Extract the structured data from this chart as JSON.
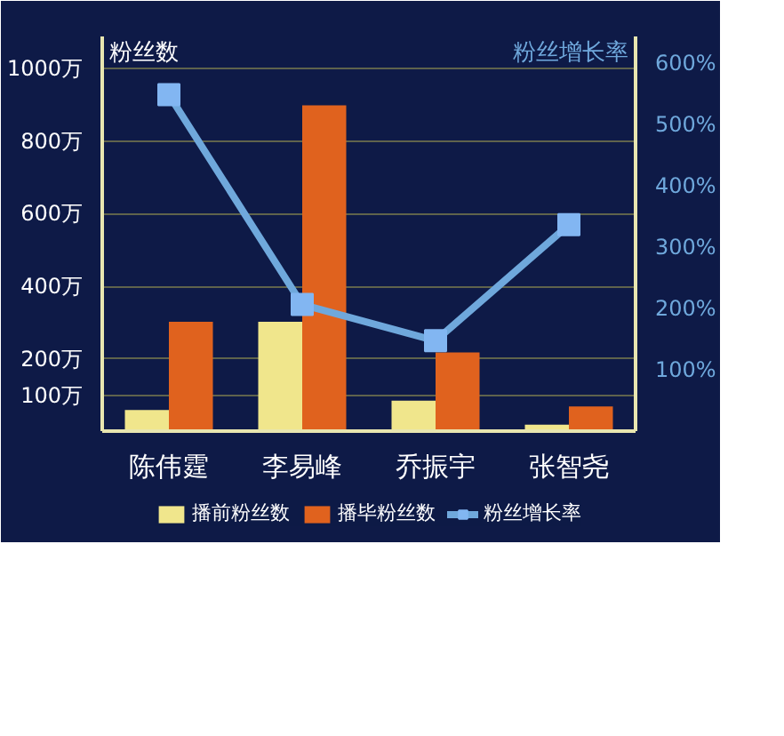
{
  "chart_data": {
    "type": "bar",
    "ylabel": "粉丝数",
    "y2label": "粉丝增长率",
    "categories": [
      "陈伟霆",
      "李易峰",
      "乔振宇",
      "张智尧"
    ],
    "series": [
      {
        "name": "播前粉丝数",
        "color": "#f0e68c",
        "values": [
          59,
          302,
          85,
          19
        ]
      },
      {
        "name": "播毕粉丝数",
        "color": "#e0621e",
        "values": [
          302,
          898,
          218,
          69
        ]
      },
      {
        "name": "粉丝增长率",
        "type": "line",
        "axis": "y2",
        "color": "#6fa8dc",
        "marker": "square",
        "values": [
          549,
          207,
          148,
          337
        ]
      }
    ],
    "ylim": [
      0,
      1088
    ],
    "yticks": [
      {
        "value": 100,
        "label": "100万"
      },
      {
        "value": 200,
        "label": "200万"
      },
      {
        "value": 400,
        "label": "400万"
      },
      {
        "value": 600,
        "label": "600万"
      },
      {
        "value": 800,
        "label": "800万"
      },
      {
        "value": 1000,
        "label": "1000万"
      }
    ],
    "y2lim": [
      0,
      644
    ],
    "y2ticks": [
      {
        "value": 100,
        "label": "100%"
      },
      {
        "value": 200,
        "label": "200%"
      },
      {
        "value": 300,
        "label": "300%"
      },
      {
        "value": 400,
        "label": "400%"
      },
      {
        "value": 500,
        "label": "500%"
      },
      {
        "value": 600,
        "label": "600%"
      }
    ],
    "grid": "y",
    "legend": "bottom"
  }
}
